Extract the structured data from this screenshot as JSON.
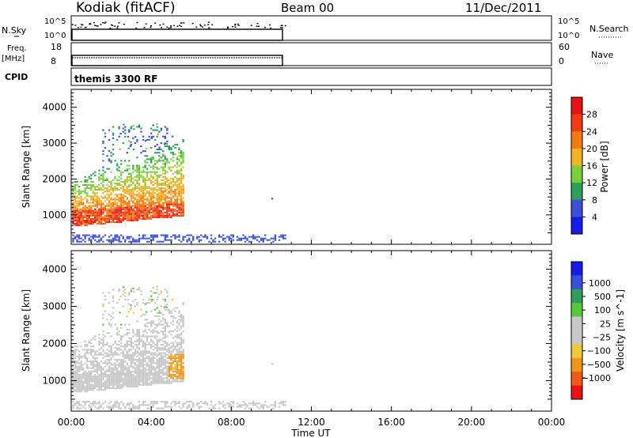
{
  "header": {
    "station": "Kodiak (fitACF)",
    "beam": "Beam 00",
    "date": "11/Dec/2011"
  },
  "strips": {
    "nsky_label": "N.Sky",
    "nsky_ticks": [
      "10^5",
      "10^0"
    ],
    "nsearch_label": "N.Search",
    "nsearch_ticks": [
      "10^5",
      "10^0"
    ],
    "freq_label": "Freq.",
    "freq_unit": "[MHz]",
    "freq_ticks": [
      "18",
      "8"
    ],
    "nave_label": "Nave",
    "nave_ticks": [
      "60",
      "0"
    ],
    "cpid_label": "CPID",
    "cpid_text": "themis 3300 RF"
  },
  "colors": {
    "power": [
      "#1a1ae6",
      "#3a50d8",
      "#2e9e5a",
      "#7ccf3c",
      "#f0b428",
      "#f07a14",
      "#f03c14",
      "#e61414"
    ],
    "velocity": [
      "#e61414",
      "#f05a14",
      "#f0961e",
      "#f0c83c",
      "#c8c8c8",
      "#c8c8c8",
      "#5ac83c",
      "#2e9e5a",
      "#3a50d8",
      "#1a1ae6"
    ]
  },
  "chart_data": [
    {
      "type": "heatmap",
      "title": "Power [dB]",
      "xlabel": "Time UT",
      "ylabel": "Slant Range [km]",
      "xlim": [
        "00:00",
        "24:00"
      ],
      "ylim": [
        180,
        4500
      ],
      "x_ticks": [
        "00:00",
        "04:00",
        "08:00",
        "12:00",
        "16:00",
        "20:00",
        "00:00"
      ],
      "y_ticks": [
        1000,
        2000,
        3000,
        4000
      ],
      "colorbar_label": "Power [dB]",
      "colorbar_ticks": [
        4,
        8,
        12,
        16,
        20,
        24,
        28
      ],
      "colorbar_range": [
        0,
        32
      ],
      "data_extent_hours": [
        0,
        10.7
      ],
      "features": [
        {
          "name": "main_echo_band",
          "start_time": "00:00",
          "end_time": "05:30",
          "range_start_km": [
            750,
            1000
          ],
          "range_end_km": [
            800,
            1100
          ],
          "value_db": 28
        },
        {
          "name": "upper_echo",
          "start_time": "00:00",
          "end_time": "05:30",
          "range_start_km": [
            1000,
            2500
          ],
          "range_end_km": [
            1400,
            3500
          ],
          "value_db": [
            8,
            20
          ]
        },
        {
          "name": "near_range_scatter",
          "start_time": "00:00",
          "end_time": "10:40",
          "range_km": [
            250,
            450
          ],
          "value_db": [
            4,
            8
          ]
        }
      ]
    },
    {
      "type": "heatmap",
      "title": "Velocity [m s^-1]",
      "xlabel": "Time UT",
      "ylabel": "Slant Range [km]",
      "xlim": [
        "00:00",
        "24:00"
      ],
      "ylim": [
        180,
        4500
      ],
      "x_ticks": [
        "00:00",
        "04:00",
        "08:00",
        "12:00",
        "16:00",
        "20:00",
        "00:00"
      ],
      "y_ticks": [
        1000,
        2000,
        3000,
        4000
      ],
      "colorbar_label": "Velocity [m s^-1]",
      "colorbar_ticks": [
        1000,
        500,
        100,
        25,
        -25,
        -100,
        -500,
        -1000
      ],
      "features": [
        {
          "name": "ground_scatter_band",
          "start_time": "00:00",
          "end_time": "05:20",
          "range_km": [
            650,
            1800
          ],
          "value_ms": 0
        },
        {
          "name": "negative_velocity_patch",
          "start_time": "04:50",
          "end_time": "05:50",
          "range_km": [
            1000,
            1700
          ],
          "value_ms": -100
        },
        {
          "name": "upper_scatter",
          "start_time": "00:00",
          "end_time": "05:00",
          "range_km": [
            1800,
            3500
          ],
          "value_ms": [
            -50,
            50
          ]
        }
      ]
    }
  ]
}
